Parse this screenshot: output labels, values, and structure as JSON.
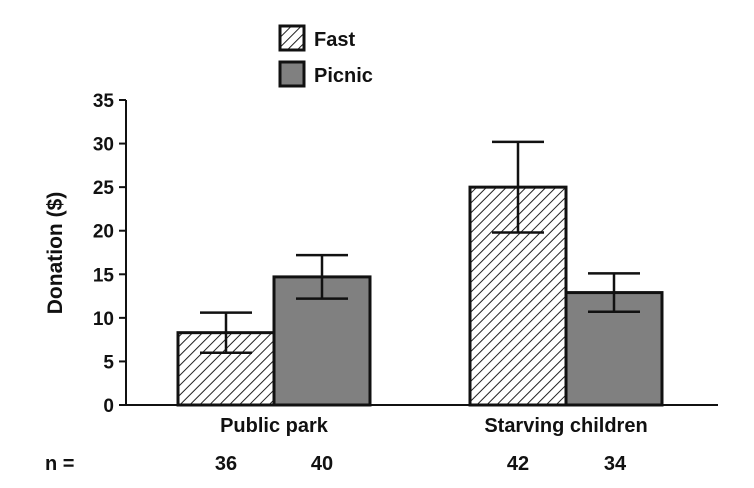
{
  "chart_data": {
    "type": "bar",
    "ylabel": "Donation ($)",
    "ylim": [
      0,
      35
    ],
    "yticks": [
      0,
      5,
      10,
      15,
      20,
      25,
      30,
      35
    ],
    "categories": [
      "Public park",
      "Starving children"
    ],
    "series": [
      {
        "name": "Fast",
        "values": [
          8.3,
          25.0
        ],
        "error": [
          2.3,
          5.2
        ],
        "n": [
          "36",
          "42"
        ],
        "pattern": "hatched"
      },
      {
        "name": "Picnic",
        "values": [
          14.7,
          12.9
        ],
        "error": [
          2.5,
          2.2
        ],
        "n": [
          "40",
          "34"
        ],
        "color": "#808080"
      }
    ],
    "n_label": "n =",
    "legend_position": "top-center",
    "grid": false
  }
}
